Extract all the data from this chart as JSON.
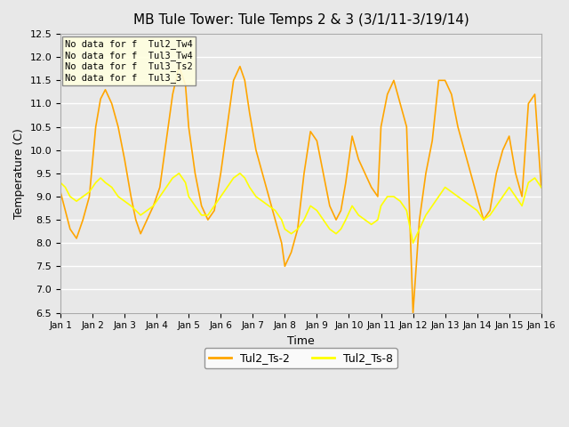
{
  "title": "MB Tule Tower: Tule Temps 2 & 3 (3/1/11-3/19/14)",
  "xlabel": "Time",
  "ylabel": "Temperature (C)",
  "ylim": [
    6.5,
    12.5
  ],
  "xlim": [
    0,
    15
  ],
  "xtick_labels": [
    "Jan 1",
    "Jan 2",
    "Jan 3",
    "Jan 4",
    "Jan 5",
    "Jan 6",
    "Jan 7",
    "Jan 8",
    "Jan 9",
    "Jan 10",
    "Jan 11",
    "Jan 12",
    "Jan 13",
    "Jan 14",
    "Jan 15",
    "Jan 16"
  ],
  "xtick_positions": [
    0,
    1,
    2,
    3,
    4,
    5,
    6,
    7,
    8,
    9,
    10,
    11,
    12,
    13,
    14,
    15
  ],
  "ytick_labels": [
    "6.5",
    "7.0",
    "7.5",
    "8.0",
    "8.5",
    "9.0",
    "9.5",
    "10.0",
    "10.5",
    "11.0",
    "11.5",
    "12.0",
    "12.5"
  ],
  "ytick_values": [
    6.5,
    7.0,
    7.5,
    8.0,
    8.5,
    9.0,
    9.5,
    10.0,
    10.5,
    11.0,
    11.5,
    12.0,
    12.5
  ],
  "background_color": "#e8e8e8",
  "plot_bg_color": "#e8e8e8",
  "grid_color": "#ffffff",
  "line1_color": "#FFA500",
  "line2_color": "#FFFF00",
  "line1_label": "Tul2_Ts-2",
  "line2_label": "Tul2_Ts-8",
  "annotations": [
    "No data for f  Tul2_Tw4",
    "No data for f  Tul3_Tw4",
    "No data for f  Tul3_Ts2",
    "No data for f  Tul3_3"
  ],
  "ts2_x": [
    0.0,
    0.15,
    0.3,
    0.5,
    0.7,
    0.9,
    1.1,
    1.25,
    1.4,
    1.6,
    1.8,
    2.0,
    2.2,
    2.35,
    2.5,
    2.7,
    2.9,
    3.1,
    3.3,
    3.5,
    3.7,
    3.9,
    4.0,
    4.2,
    4.4,
    4.6,
    4.8,
    5.0,
    5.2,
    5.4,
    5.6,
    5.75,
    5.9,
    6.1,
    6.3,
    6.5,
    6.7,
    6.9,
    7.0,
    7.2,
    7.4,
    7.6,
    7.8,
    8.0,
    8.2,
    8.4,
    8.6,
    8.75,
    8.9,
    9.1,
    9.3,
    9.5,
    9.7,
    9.9,
    10.0,
    10.2,
    10.4,
    10.6,
    10.8,
    11.0,
    11.2,
    11.4,
    11.6,
    11.8,
    12.0,
    12.2,
    12.4,
    12.6,
    12.8,
    13.0,
    13.2,
    13.4,
    13.6,
    13.8,
    14.0,
    14.2,
    14.4,
    14.6,
    14.8,
    15.0
  ],
  "ts2_y": [
    9.1,
    8.7,
    8.3,
    8.1,
    8.5,
    9.0,
    10.5,
    11.1,
    11.3,
    11.0,
    10.5,
    9.8,
    9.0,
    8.5,
    8.2,
    8.5,
    8.8,
    9.2,
    10.2,
    11.2,
    11.8,
    11.4,
    10.5,
    9.5,
    8.8,
    8.5,
    8.7,
    9.5,
    10.5,
    11.5,
    11.8,
    11.5,
    10.8,
    10.0,
    9.5,
    9.0,
    8.5,
    8.0,
    7.5,
    7.8,
    8.3,
    9.5,
    10.4,
    10.2,
    9.5,
    8.8,
    8.5,
    8.7,
    9.3,
    10.3,
    9.8,
    9.5,
    9.2,
    9.0,
    10.5,
    11.2,
    11.5,
    11.0,
    10.5,
    6.5,
    8.5,
    9.5,
    10.2,
    11.5,
    11.5,
    11.2,
    10.5,
    10.0,
    9.5,
    9.0,
    8.5,
    8.7,
    9.5,
    10.0,
    10.3,
    9.5,
    9.0,
    11.0,
    11.2,
    9.2
  ],
  "ts8_x": [
    0.0,
    0.15,
    0.3,
    0.5,
    0.7,
    0.9,
    1.1,
    1.25,
    1.4,
    1.6,
    1.8,
    2.0,
    2.2,
    2.35,
    2.5,
    2.7,
    2.9,
    3.1,
    3.3,
    3.5,
    3.7,
    3.9,
    4.0,
    4.2,
    4.4,
    4.6,
    4.8,
    5.0,
    5.2,
    5.4,
    5.6,
    5.75,
    5.9,
    6.1,
    6.3,
    6.5,
    6.7,
    6.9,
    7.0,
    7.2,
    7.4,
    7.6,
    7.8,
    8.0,
    8.2,
    8.4,
    8.6,
    8.75,
    8.9,
    9.1,
    9.3,
    9.5,
    9.7,
    9.9,
    10.0,
    10.2,
    10.4,
    10.6,
    10.8,
    11.0,
    11.2,
    11.4,
    11.6,
    11.8,
    12.0,
    12.2,
    12.4,
    12.6,
    12.8,
    13.0,
    13.2,
    13.4,
    13.6,
    13.8,
    14.0,
    14.2,
    14.4,
    14.6,
    14.8,
    15.0
  ],
  "ts8_y": [
    9.3,
    9.2,
    9.0,
    8.9,
    9.0,
    9.1,
    9.3,
    9.4,
    9.3,
    9.2,
    9.0,
    8.9,
    8.8,
    8.7,
    8.6,
    8.7,
    8.8,
    9.0,
    9.2,
    9.4,
    9.5,
    9.3,
    9.0,
    8.8,
    8.6,
    8.6,
    8.8,
    9.0,
    9.2,
    9.4,
    9.5,
    9.4,
    9.2,
    9.0,
    8.9,
    8.8,
    8.7,
    8.5,
    8.3,
    8.2,
    8.3,
    8.5,
    8.8,
    8.7,
    8.5,
    8.3,
    8.2,
    8.3,
    8.5,
    8.8,
    8.6,
    8.5,
    8.4,
    8.5,
    8.8,
    9.0,
    9.0,
    8.9,
    8.7,
    8.0,
    8.3,
    8.6,
    8.8,
    9.0,
    9.2,
    9.1,
    9.0,
    8.9,
    8.8,
    8.7,
    8.5,
    8.6,
    8.8,
    9.0,
    9.2,
    9.0,
    8.8,
    9.3,
    9.4,
    9.2
  ]
}
